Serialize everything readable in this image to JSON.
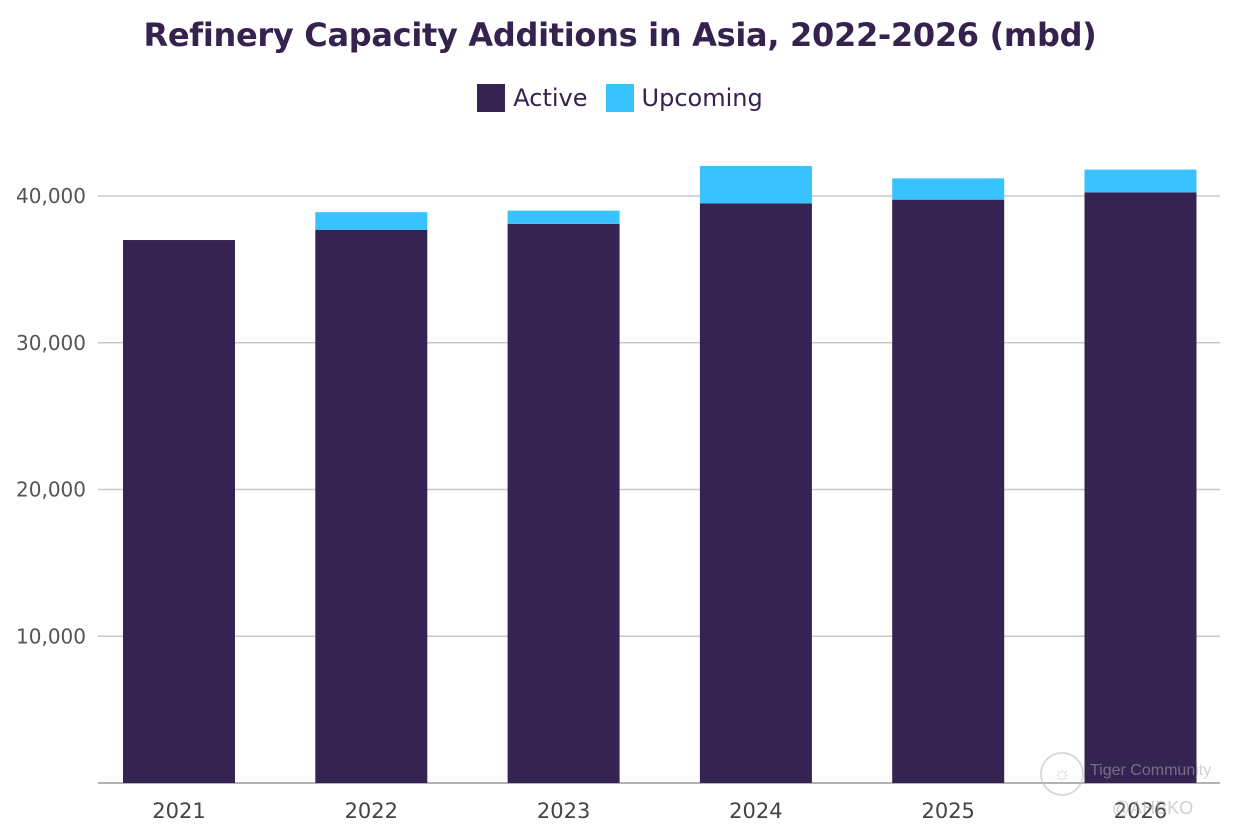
{
  "chart_data": {
    "type": "bar",
    "stacked": true,
    "title": "Refinery Capacity Additions in Asia, 2022-2026 (mbd)",
    "categories": [
      "2021",
      "2022",
      "2023",
      "2024",
      "2025",
      "2026"
    ],
    "series": [
      {
        "name": "Active",
        "color": "#352451",
        "values": [
          37000,
          37700,
          38100,
          39500,
          39750,
          40250
        ]
      },
      {
        "name": "Upcoming",
        "color": "#38c3ff",
        "values": [
          0,
          1200,
          900,
          2550,
          1450,
          1550
        ]
      }
    ],
    "y_ticks": [
      10000,
      20000,
      30000,
      40000
    ],
    "y_tick_labels": [
      "10,000",
      "20,000",
      "30,000",
      "40,000"
    ],
    "ylim": [
      0,
      43000
    ],
    "grid": true,
    "legend_position": "top-center"
  },
  "watermark": {
    "logo_icon": "tiger-logo-icon",
    "text": "Tiger Community",
    "handle": "@AHBKO"
  }
}
